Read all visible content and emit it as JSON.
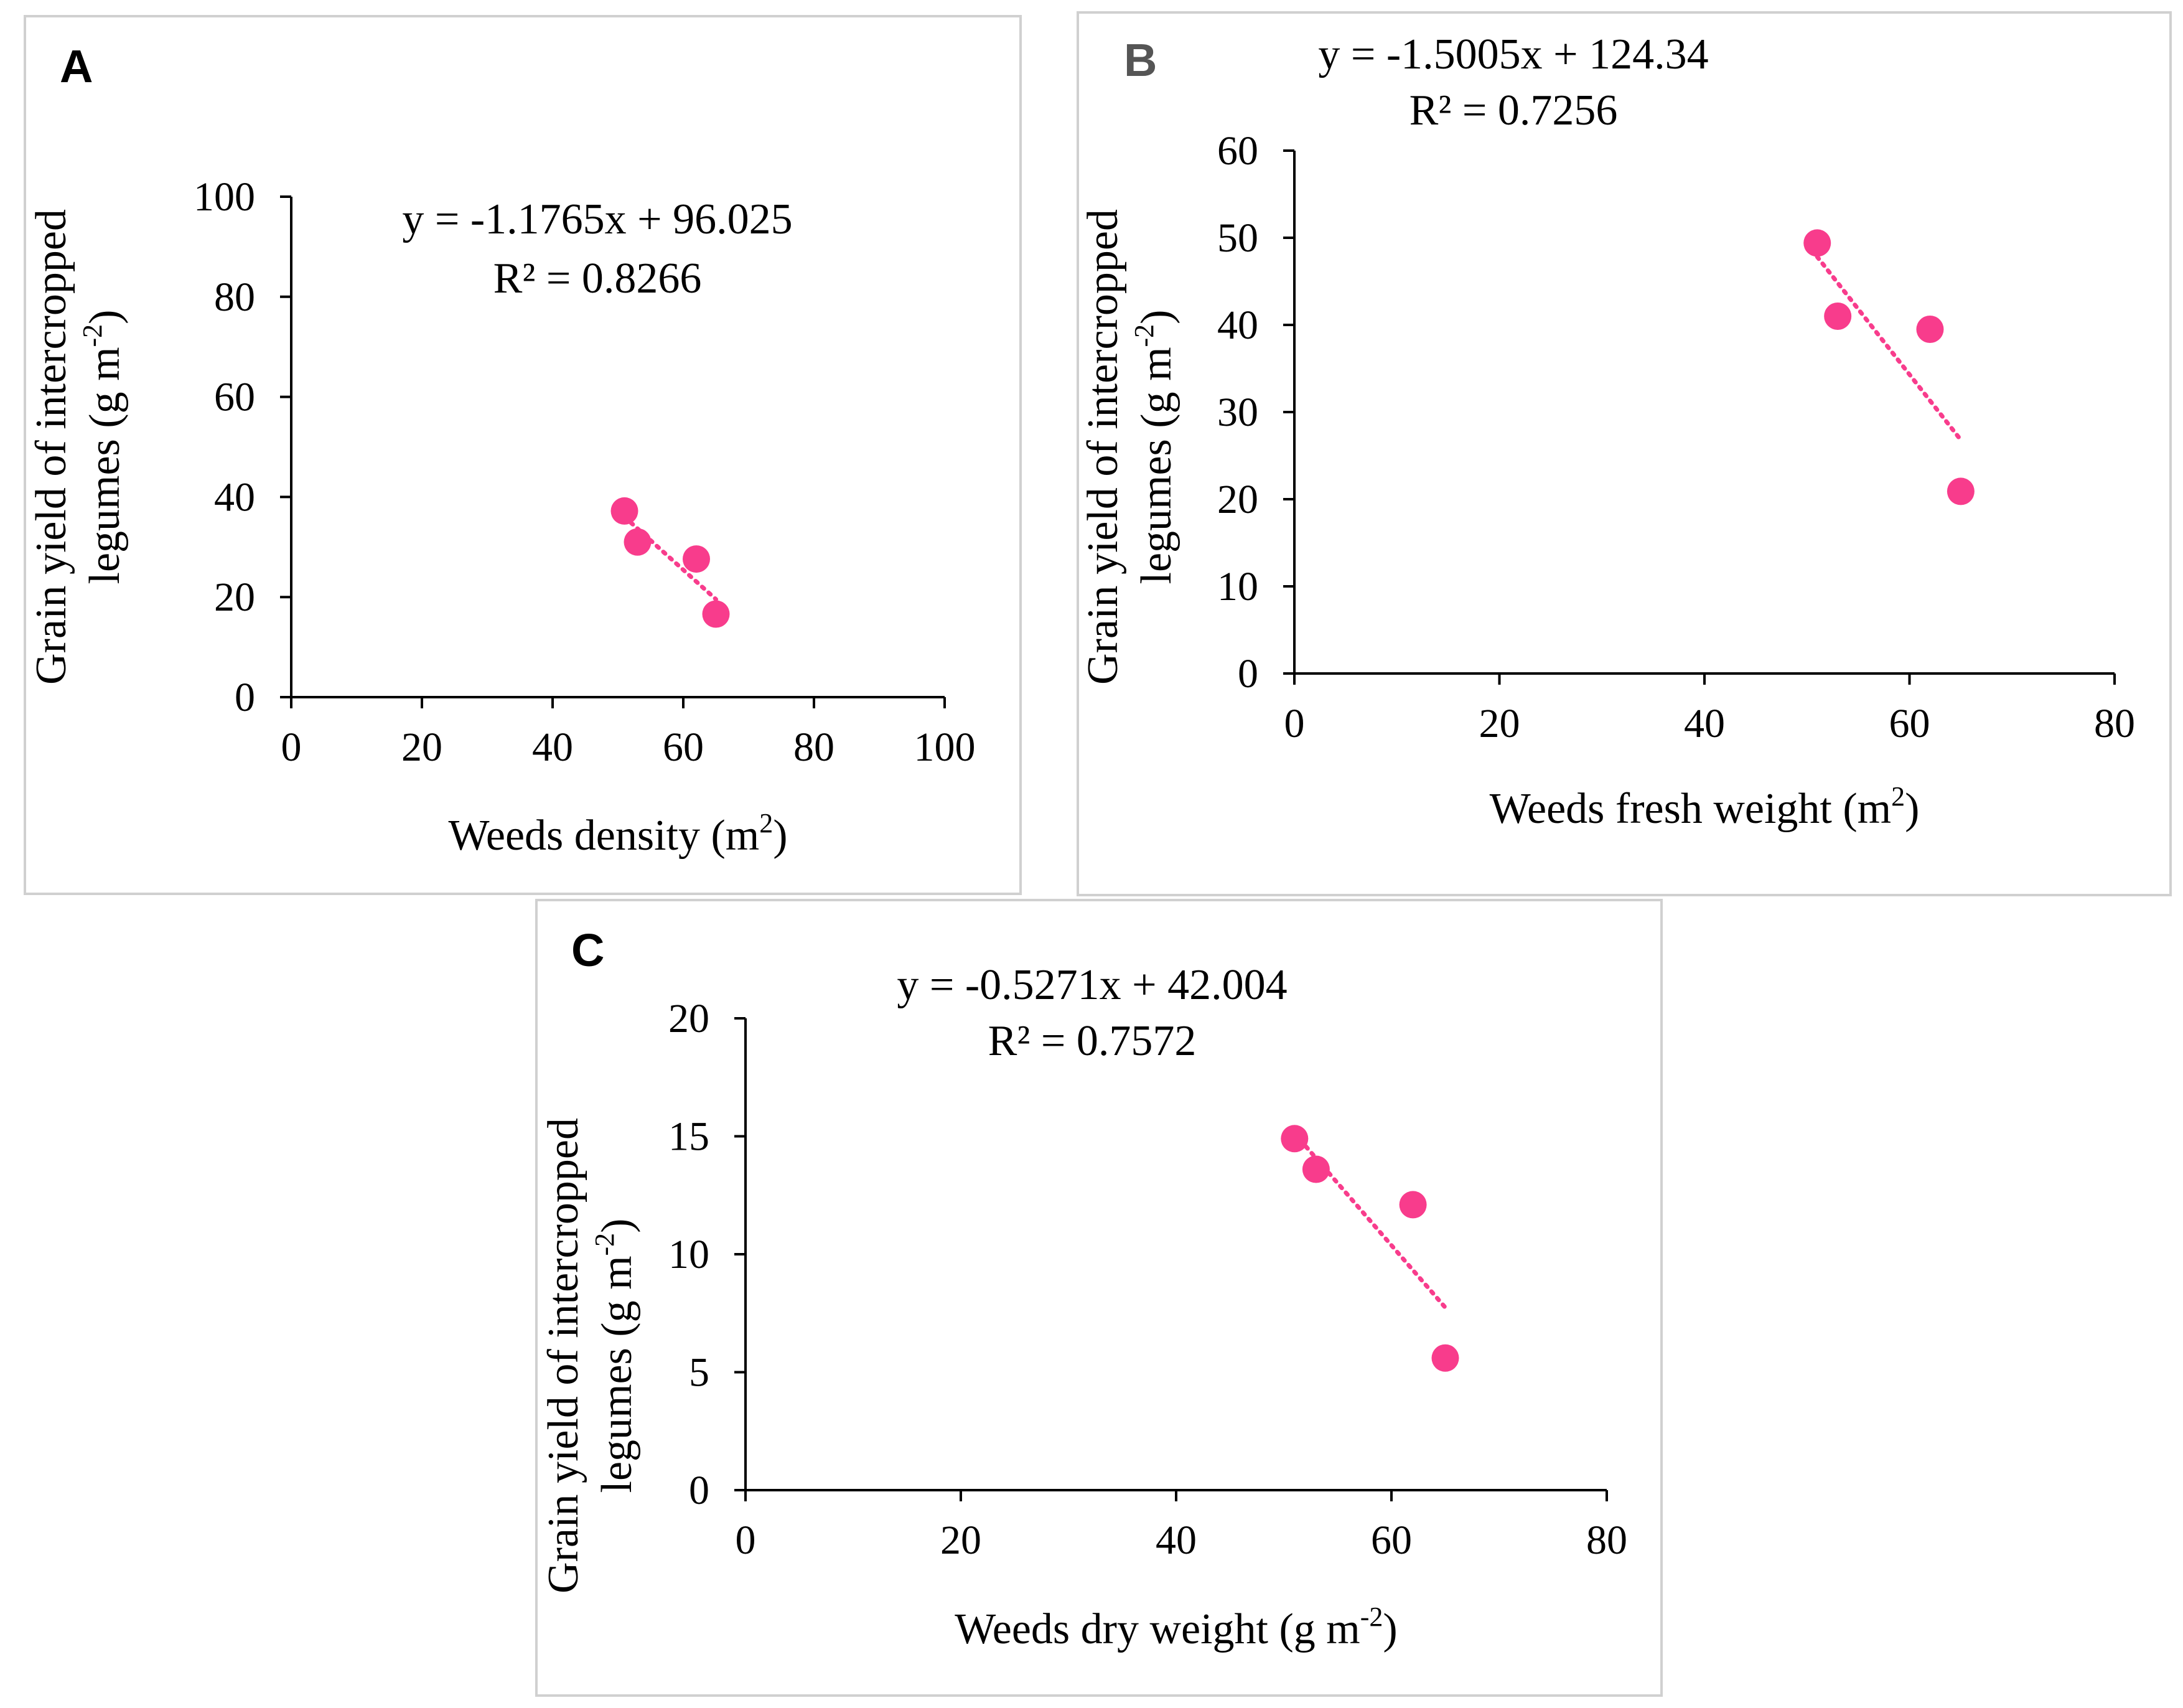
{
  "chart_data": [
    {
      "panel": "A",
      "type": "scatter",
      "title": "",
      "xlabel": "Weeds density (m",
      "xlabel_sup": "2",
      "xlabel_tail": ")",
      "ylabel_line1": "Grain yield of intercropped",
      "ylabel_line2": "legumes (g m",
      "ylabel_sup": "-2",
      "ylabel_tail": ")",
      "xlim": [
        0,
        100
      ],
      "ylim": [
        0,
        100
      ],
      "xticks": [
        0,
        20,
        40,
        60,
        80,
        100
      ],
      "yticks": [
        0,
        20,
        40,
        60,
        80,
        100
      ],
      "x": [
        51,
        53,
        62,
        65
      ],
      "y": [
        37.2,
        31.0,
        27.6,
        16.6
      ],
      "equation": "y = -1.1765x + 96.025",
      "r2": "R² = 0.8266",
      "trendline": {
        "slope": -1.1765,
        "intercept": 96.025,
        "x_range": [
          51,
          65
        ]
      },
      "grid": false,
      "legend": "none"
    },
    {
      "panel": "B",
      "type": "scatter",
      "title": "",
      "xlabel": "Weeds fresh weight (m",
      "xlabel_sup": "2",
      "xlabel_tail": ")",
      "ylabel_line1": "Grain yield of intercropped",
      "ylabel_line2": "legumes (g m",
      "ylabel_sup": "-2",
      "ylabel_tail": ")",
      "xlim": [
        0,
        80
      ],
      "ylim": [
        0,
        60
      ],
      "xticks": [
        0,
        20,
        40,
        60,
        80
      ],
      "yticks": [
        0,
        10,
        20,
        30,
        40,
        50,
        60
      ],
      "x": [
        51,
        53,
        62,
        65
      ],
      "y": [
        49.4,
        41.0,
        39.5,
        20.9
      ],
      "equation": "y = -1.5005x + 124.34",
      "r2": "R² = 0.7256",
      "trendline": {
        "slope": -1.5005,
        "intercept": 124.34,
        "x_range": [
          51,
          65
        ]
      },
      "grid": false,
      "legend": "none"
    },
    {
      "panel": "C",
      "type": "scatter",
      "title": "",
      "xlabel": "Weeds dry weight (g m",
      "xlabel_sup": "-2",
      "xlabel_tail": ")",
      "ylabel_line1": "Grain yield of intercropped",
      "ylabel_line2": "legumes (g m",
      "ylabel_sup": "-2",
      "ylabel_tail": ")",
      "xlim": [
        0,
        80
      ],
      "ylim": [
        0,
        20
      ],
      "xticks": [
        0,
        20,
        40,
        60,
        80
      ],
      "yticks": [
        0,
        5,
        10,
        15,
        20
      ],
      "x": [
        51,
        53,
        62,
        65
      ],
      "y": [
        14.9,
        13.6,
        12.1,
        5.6
      ],
      "equation": "y = -0.5271x + 42.004",
      "r2": "R² = 0.7572",
      "trendline": {
        "slope": -0.5271,
        "intercept": 42.004,
        "x_range": [
          51,
          65
        ]
      },
      "grid": false,
      "legend": "none"
    }
  ],
  "colors": {
    "marker": "#F83C8C",
    "trendline": "#F83C8C",
    "axis": "#000000",
    "frame": "#D0D0D0",
    "panel_label_a": "#000000",
    "panel_label_b": "#555555",
    "panel_label_c": "#000000"
  }
}
